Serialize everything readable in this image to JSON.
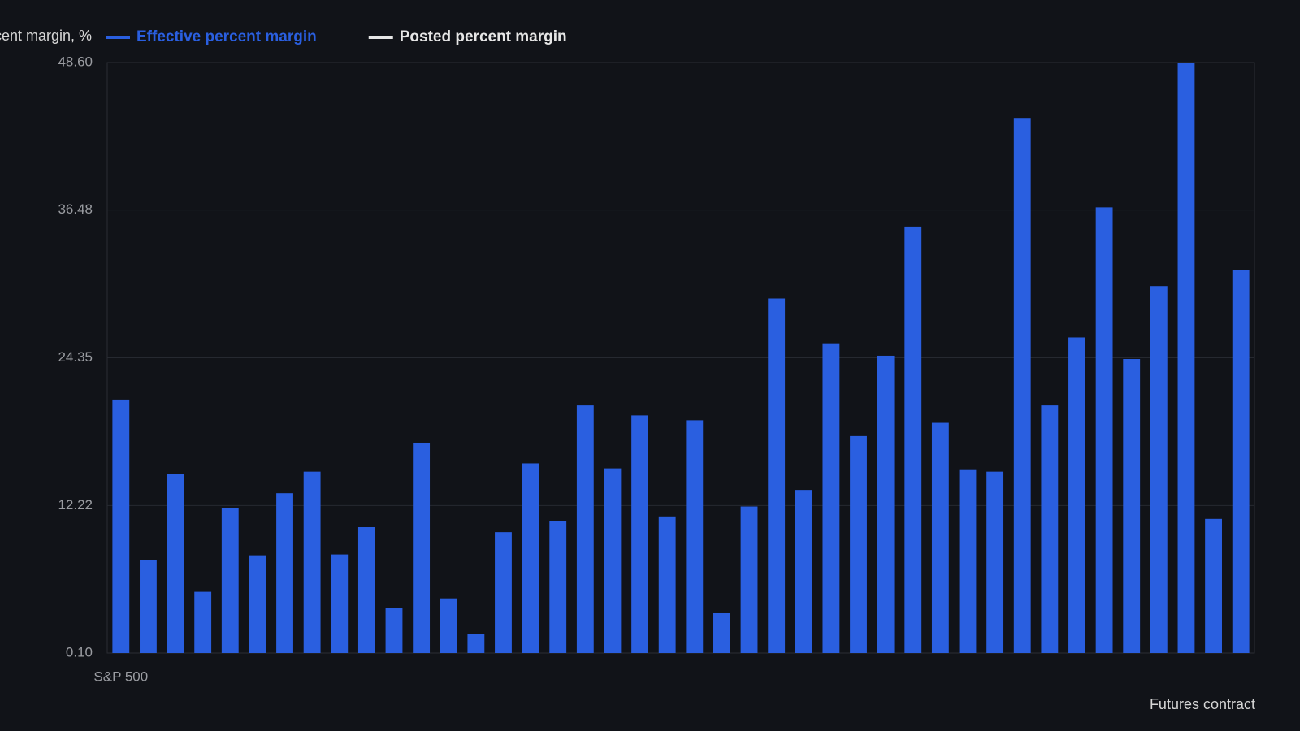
{
  "chart_data": {
    "type": "bar",
    "y_label": "Effective percent margin, %",
    "x_label": "Futures contract",
    "categories": [
      "S&P 500",
      null,
      null,
      null,
      null,
      null,
      null,
      null,
      null,
      null,
      null,
      null,
      null,
      null,
      null,
      null,
      null,
      null,
      null,
      null,
      null,
      null,
      null,
      null,
      null,
      null,
      null,
      null,
      null,
      null,
      null,
      null,
      null,
      null,
      null,
      null,
      null,
      null,
      null,
      null,
      null,
      null
    ],
    "series": [
      {
        "name": "Effective percent margin",
        "color": "#2a5fe0",
        "values": [
          20.92,
          7.72,
          14.79,
          5.13,
          12.0,
          8.13,
          13.23,
          15.0,
          8.2,
          10.44,
          3.77,
          17.38,
          4.59,
          1.66,
          10.03,
          15.68,
          10.92,
          20.44,
          15.27,
          19.62,
          11.32,
          19.22,
          3.37,
          12.14,
          29.22,
          13.5,
          25.54,
          17.92,
          24.52,
          35.13,
          19.01,
          15.13,
          15.0,
          44.05,
          20.44,
          26.02,
          36.7,
          24.25,
          30.24,
          48.6,
          11.12,
          31.53
        ]
      },
      {
        "name": "Posted percent margin",
        "color": "#e6e6e6",
        "values": [
          null,
          null,
          null,
          null,
          null,
          null,
          null,
          null,
          null,
          null,
          null,
          null,
          null,
          null,
          null,
          null,
          null,
          null,
          null,
          null,
          null,
          null,
          null,
          null,
          null,
          null,
          null,
          null,
          null,
          null,
          null,
          null,
          null,
          null,
          null,
          null,
          null,
          null,
          null,
          null,
          null,
          null
        ]
      }
    ],
    "ylim": [
      0.1,
      48.6
    ],
    "yticks": [
      {
        "value": 0.1,
        "label": "0.10"
      },
      12.22,
      24.35,
      36.48,
      {
        "value": 48.6,
        "label": "48.60"
      }
    ],
    "grid": true
  }
}
